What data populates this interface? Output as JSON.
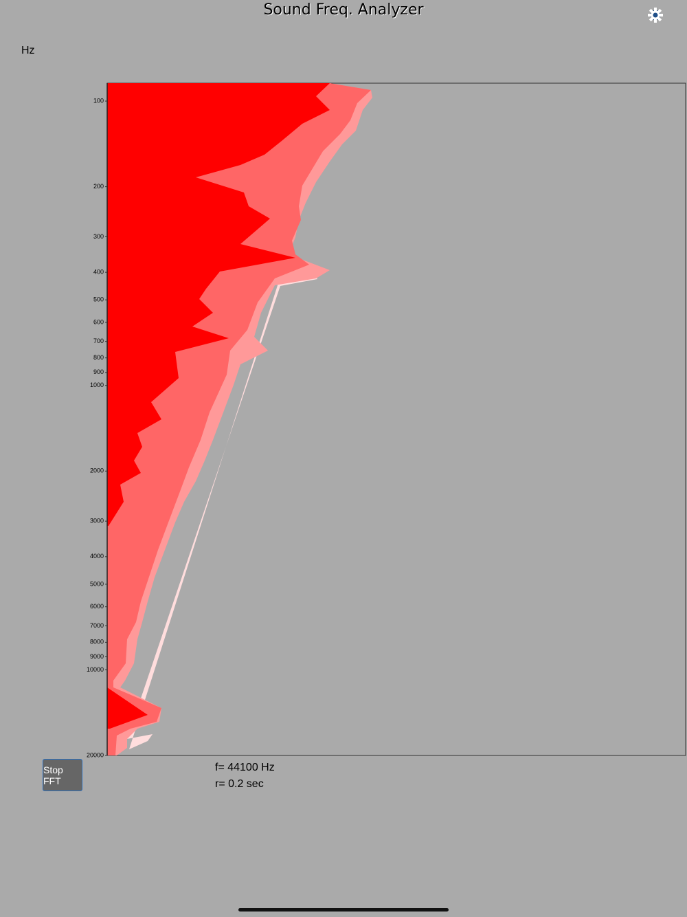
{
  "header": {
    "title": "Sound Freq. Analyzer"
  },
  "frequency_axis": {
    "unit": "Hz",
    "log_scale": true,
    "ylim": [
      86.5,
      20000
    ],
    "yticks": [
      100,
      200,
      300,
      400,
      500,
      600,
      700,
      800,
      900,
      1000,
      2000,
      3000,
      4000,
      5000,
      6000,
      7000,
      8000,
      9000,
      10000,
      20000
    ]
  },
  "controls": {
    "button": "Stop FFT"
  },
  "info": {
    "sample_rate": "f= 44100 Hz",
    "duration": "r= 0.2 sec"
  }
}
